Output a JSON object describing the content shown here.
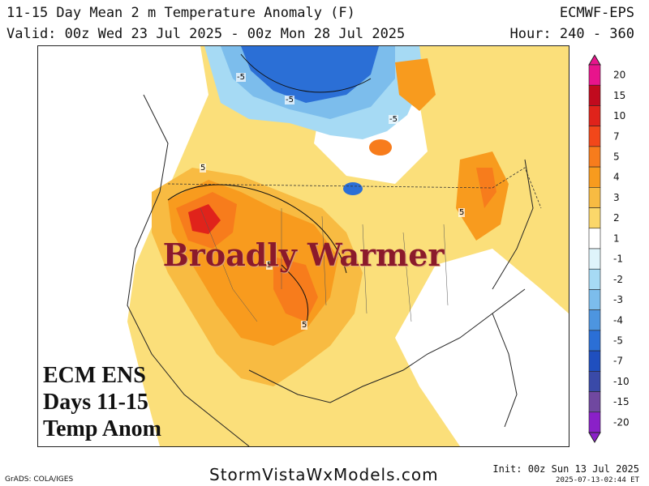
{
  "header": {
    "title": "11-15 Day Mean 2 m Temperature Anomaly (F)",
    "valid": "Valid: 00z Wed 23 Jul 2025 - 00z Mon 28 Jul 2025",
    "model": "ECMWF-EPS",
    "hours": "Hour: 240 - 360"
  },
  "overlay": {
    "headline": "Broadly Warmer",
    "inset_lines": [
      "ECM ENS",
      "Days 11-15",
      "Temp Anom"
    ]
  },
  "contour_labels": [
    "-5",
    "-5",
    "-5",
    "5",
    "5",
    "5",
    "5"
  ],
  "colorbar": {
    "labels": [
      "20",
      "15",
      "10",
      "7",
      "5",
      "4",
      "3",
      "2",
      "1",
      "-1",
      "-2",
      "-3",
      "-4",
      "-5",
      "-7",
      "-10",
      "-15",
      "-20"
    ],
    "colors": [
      "#e8148c",
      "#c10a1e",
      "#e0231b",
      "#f2471a",
      "#f77c1c",
      "#f89b1e",
      "#f8bb42",
      "#fbd76a",
      "#ffffff",
      "#dff4fb",
      "#a6daf4",
      "#7cbdec",
      "#4d95e0",
      "#2b6fd6",
      "#1f4fbf",
      "#3a4aa8",
      "#7048a0",
      "#8a20c8"
    ]
  },
  "footer": {
    "credit": "GrADS: COLA/IGES",
    "site": "StormVistaWxModels.com",
    "init": "Init: 00z Sun 13 Jul 2025",
    "timestamp": "2025-07-13-02:44 ET"
  }
}
